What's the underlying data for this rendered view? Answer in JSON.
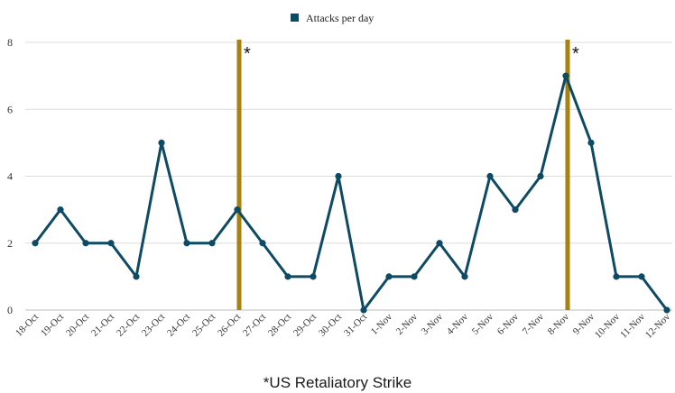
{
  "chart_data": {
    "type": "line",
    "title": "",
    "xlabel": "",
    "ylabel": "",
    "ylim": [
      0,
      8
    ],
    "yticks": [
      0,
      2,
      4,
      6,
      8
    ],
    "grid": true,
    "legend_position": "top-center",
    "categories": [
      "18-Oct",
      "19-Oct",
      "20-Oct",
      "21-Oct",
      "22-Oct",
      "23-Oct",
      "24-Oct",
      "25-Oct",
      "26-Oct",
      "27-Oct",
      "28-Oct",
      "29-Oct",
      "30-Oct",
      "31-Oct",
      "1-Nov",
      "2-Nov",
      "3-Nov",
      "4-Nov",
      "5-Nov",
      "6-Nov",
      "7-Nov",
      "8-Nov",
      "9-Nov",
      "10-Nov",
      "11-Nov",
      "12-Nov"
    ],
    "series": [
      {
        "name": "Attacks per day",
        "color": "#0d4a63",
        "values": [
          2,
          3,
          2,
          2,
          1,
          5,
          2,
          2,
          3,
          2,
          1,
          1,
          4,
          0,
          1,
          1,
          2,
          1,
          4,
          3,
          4,
          7,
          5,
          1,
          1,
          0
        ]
      }
    ],
    "annotations": [
      {
        "category": "26-Oct",
        "label": "*",
        "color": "#a8810f"
      },
      {
        "category": "8-Nov",
        "label": "*",
        "color": "#a8810f"
      }
    ]
  },
  "caption": "*US Retaliatory Strike"
}
